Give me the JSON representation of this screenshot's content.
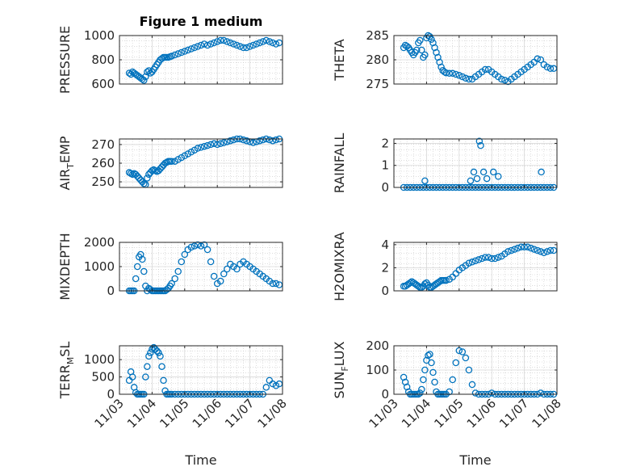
{
  "chart_data": [
    {
      "type": "scatter",
      "title": "Figure 1 medium",
      "ylabel": "PRESSURE",
      "ylim": [
        600,
        1000
      ],
      "yticks": [
        600,
        800,
        1000
      ],
      "xlim": [
        0,
        5
      ],
      "xticks": [],
      "grid": true,
      "color": "#0072BD",
      "x": [
        0.3,
        0.35,
        0.4,
        0.45,
        0.5,
        0.55,
        0.6,
        0.65,
        0.7,
        0.75,
        0.8,
        0.85,
        0.9,
        0.95,
        1.0,
        1.05,
        1.1,
        1.15,
        1.2,
        1.25,
        1.3,
        1.35,
        1.4,
        1.45,
        1.5,
        1.55,
        1.6,
        1.7,
        1.8,
        1.9,
        2.0,
        2.1,
        2.2,
        2.3,
        2.4,
        2.5,
        2.6,
        2.7,
        2.8,
        2.9,
        3.0,
        3.1,
        3.2,
        3.3,
        3.4,
        3.5,
        3.6,
        3.7,
        3.8,
        3.9,
        4.0,
        4.1,
        4.2,
        4.3,
        4.4,
        4.5,
        4.6,
        4.7,
        4.8,
        4.9
      ],
      "y": [
        690,
        680,
        700,
        690,
        680,
        670,
        660,
        650,
        640,
        630,
        660,
        700,
        710,
        690,
        700,
        720,
        740,
        760,
        780,
        800,
        810,
        820,
        820,
        820,
        820,
        825,
        830,
        840,
        850,
        860,
        870,
        880,
        890,
        900,
        910,
        920,
        930,
        920,
        930,
        940,
        950,
        960,
        960,
        950,
        940,
        930,
        920,
        910,
        900,
        900,
        910,
        920,
        930,
        940,
        950,
        960,
        950,
        940,
        930,
        940
      ]
    },
    {
      "type": "scatter",
      "ylabel": "THETA",
      "ylim": [
        275,
        285
      ],
      "yticks": [
        275,
        280,
        285
      ],
      "xlim": [
        0,
        5
      ],
      "xticks": [],
      "grid": true,
      "color": "#0072BD",
      "x": [
        0.3,
        0.35,
        0.4,
        0.45,
        0.5,
        0.55,
        0.6,
        0.65,
        0.7,
        0.75,
        0.8,
        0.85,
        0.9,
        0.95,
        1.0,
        1.05,
        1.1,
        1.15,
        1.2,
        1.25,
        1.3,
        1.35,
        1.4,
        1.45,
        1.5,
        1.55,
        1.6,
        1.7,
        1.8,
        1.9,
        2.0,
        2.1,
        2.2,
        2.3,
        2.4,
        2.5,
        2.6,
        2.7,
        2.8,
        2.9,
        3.0,
        3.1,
        3.2,
        3.3,
        3.4,
        3.5,
        3.6,
        3.7,
        3.8,
        3.9,
        4.0,
        4.1,
        4.2,
        4.3,
        4.4,
        4.5,
        4.6,
        4.7,
        4.8,
        4.9
      ],
      "y": [
        282.5,
        283,
        282.8,
        282.5,
        282,
        281.5,
        281,
        281.5,
        282,
        283.5,
        284,
        282,
        280.5,
        281,
        284.5,
        285,
        284.8,
        284.2,
        283.5,
        282.5,
        281.5,
        280.5,
        279.5,
        278.5,
        277.8,
        277.5,
        277.3,
        277.2,
        277.2,
        277,
        276.8,
        276.5,
        276.2,
        276,
        276,
        276.5,
        277,
        277.5,
        278,
        278,
        277.5,
        277,
        276.5,
        276,
        275.8,
        275.5,
        276,
        276.5,
        277,
        277.5,
        278,
        278.5,
        279,
        279.5,
        280.2,
        280,
        279,
        278.5,
        278.2,
        278.2
      ]
    },
    {
      "type": "scatter",
      "ylabel": "AIR_TEMP",
      "ylim": [
        247,
        273
      ],
      "yticks": [
        250,
        260,
        270
      ],
      "xlim": [
        0,
        5
      ],
      "xticks": [],
      "grid": true,
      "color": "#0072BD",
      "x": [
        0.3,
        0.35,
        0.4,
        0.45,
        0.5,
        0.55,
        0.6,
        0.65,
        0.7,
        0.75,
        0.8,
        0.85,
        0.9,
        0.95,
        1.0,
        1.05,
        1.1,
        1.15,
        1.2,
        1.25,
        1.3,
        1.35,
        1.4,
        1.45,
        1.5,
        1.55,
        1.6,
        1.7,
        1.8,
        1.9,
        2.0,
        2.1,
        2.2,
        2.3,
        2.4,
        2.5,
        2.6,
        2.7,
        2.8,
        2.9,
        3.0,
        3.1,
        3.2,
        3.3,
        3.4,
        3.5,
        3.6,
        3.7,
        3.8,
        3.9,
        4.0,
        4.1,
        4.2,
        4.3,
        4.4,
        4.5,
        4.6,
        4.7,
        4.8,
        4.9
      ],
      "y": [
        255,
        254.5,
        254,
        254.5,
        254,
        253,
        252,
        251,
        250,
        249,
        248.5,
        252,
        254,
        255,
        256,
        256.5,
        256,
        255.5,
        256,
        257,
        258,
        259,
        260,
        260.5,
        261,
        261,
        261,
        261,
        262,
        263,
        264,
        265,
        266,
        267,
        268,
        268.5,
        269,
        269.5,
        270,
        270.5,
        270,
        270.5,
        271,
        271.5,
        272,
        272.5,
        273,
        273,
        272.5,
        272,
        271.5,
        271,
        271.5,
        272,
        272.5,
        273,
        272.5,
        272,
        272.5,
        273
      ]
    },
    {
      "type": "scatter",
      "ylabel": "RAINFALL",
      "ylim": [
        0,
        2.2
      ],
      "yticks": [
        0,
        1,
        2
      ],
      "xlim": [
        0,
        5
      ],
      "xticks": [],
      "grid": true,
      "color": "#0072BD",
      "x": [
        0.3,
        0.4,
        0.5,
        0.6,
        0.7,
        0.8,
        0.9,
        1.0,
        1.1,
        1.2,
        1.3,
        1.4,
        1.5,
        1.6,
        1.7,
        1.8,
        1.9,
        2.0,
        2.1,
        2.2,
        2.3,
        2.4,
        2.5,
        2.6,
        2.7,
        2.8,
        2.9,
        3.0,
        3.1,
        3.2,
        3.3,
        3.4,
        3.5,
        3.6,
        3.7,
        3.8,
        3.9,
        4.0,
        4.1,
        4.2,
        4.3,
        4.4,
        4.5,
        4.6,
        4.7,
        4.8,
        4.9,
        0.95,
        2.35,
        2.45,
        2.55,
        2.75,
        2.85,
        2.62,
        2.66,
        3.05,
        3.2,
        4.52
      ],
      "y": [
        0,
        0,
        0,
        0,
        0,
        0,
        0,
        0,
        0,
        0,
        0,
        0,
        0,
        0,
        0,
        0,
        0,
        0,
        0,
        0,
        0,
        0,
        0,
        0,
        0,
        0,
        0,
        0,
        0,
        0,
        0,
        0,
        0,
        0,
        0,
        0,
        0,
        0,
        0,
        0,
        0,
        0,
        0,
        0,
        0,
        0,
        0,
        0.3,
        0.3,
        0.7,
        0.4,
        0.7,
        0.4,
        2.1,
        1.9,
        0.7,
        0.5,
        0.7
      ]
    },
    {
      "type": "scatter",
      "ylabel": "MIXDEPTH",
      "ylim": [
        0,
        2000
      ],
      "yticks": [
        0,
        1000,
        2000
      ],
      "xlim": [
        0,
        5
      ],
      "xticks": [],
      "grid": true,
      "color": "#0072BD",
      "x": [
        0.3,
        0.35,
        0.4,
        0.45,
        0.5,
        0.55,
        0.6,
        0.65,
        0.7,
        0.75,
        0.8,
        0.85,
        0.9,
        0.95,
        1.0,
        1.05,
        1.1,
        1.15,
        1.2,
        1.25,
        1.3,
        1.35,
        1.4,
        1.45,
        1.5,
        1.55,
        1.6,
        1.7,
        1.8,
        1.9,
        2.0,
        2.1,
        2.2,
        2.3,
        2.4,
        2.5,
        2.6,
        2.7,
        2.8,
        2.9,
        3.0,
        3.1,
        3.2,
        3.3,
        3.4,
        3.5,
        3.6,
        3.7,
        3.8,
        3.9,
        4.0,
        4.1,
        4.2,
        4.3,
        4.4,
        4.5,
        4.6,
        4.7,
        4.8,
        4.9
      ],
      "y": [
        0,
        0,
        0,
        0,
        500,
        1000,
        1400,
        1500,
        1300,
        800,
        200,
        0,
        100,
        50,
        0,
        0,
        0,
        0,
        0,
        0,
        0,
        0,
        0,
        50,
        100,
        200,
        300,
        500,
        800,
        1200,
        1500,
        1700,
        1800,
        1850,
        1900,
        1850,
        1900,
        1700,
        1200,
        600,
        300,
        400,
        700,
        900,
        1100,
        1000,
        900,
        1100,
        1200,
        1100,
        1000,
        900,
        800,
        700,
        600,
        500,
        400,
        300,
        300,
        250
      ]
    },
    {
      "type": "scatter",
      "ylabel": "H2OMIXRA",
      "ylim": [
        0,
        4.2
      ],
      "yticks": [
        0,
        2,
        4
      ],
      "xlim": [
        0,
        5
      ],
      "xticks": [],
      "grid": true,
      "color": "#0072BD",
      "x": [
        0.3,
        0.35,
        0.4,
        0.45,
        0.5,
        0.55,
        0.6,
        0.65,
        0.7,
        0.75,
        0.8,
        0.85,
        0.9,
        0.95,
        1.0,
        1.05,
        1.1,
        1.15,
        1.2,
        1.25,
        1.3,
        1.35,
        1.4,
        1.45,
        1.5,
        1.55,
        1.6,
        1.7,
        1.8,
        1.9,
        2.0,
        2.1,
        2.2,
        2.3,
        2.4,
        2.5,
        2.6,
        2.7,
        2.8,
        2.9,
        3.0,
        3.1,
        3.2,
        3.3,
        3.4,
        3.5,
        3.6,
        3.7,
        3.8,
        3.9,
        4.0,
        4.1,
        4.2,
        4.3,
        4.4,
        4.5,
        4.6,
        4.7,
        4.8,
        4.9
      ],
      "y": [
        0.4,
        0.4,
        0.5,
        0.6,
        0.7,
        0.8,
        0.7,
        0.6,
        0.5,
        0.4,
        0.3,
        0.3,
        0.4,
        0.6,
        0.7,
        0.5,
        0.3,
        0.3,
        0.4,
        0.5,
        0.6,
        0.7,
        0.8,
        0.9,
        0.9,
        0.9,
        0.9,
        1.0,
        1.2,
        1.5,
        1.8,
        2.0,
        2.2,
        2.4,
        2.5,
        2.6,
        2.7,
        2.8,
        2.9,
        2.9,
        2.8,
        2.8,
        2.9,
        3.0,
        3.2,
        3.4,
        3.5,
        3.6,
        3.7,
        3.8,
        3.8,
        3.8,
        3.7,
        3.6,
        3.5,
        3.4,
        3.3,
        3.4,
        3.5,
        3.5
      ]
    },
    {
      "type": "scatter",
      "ylabel": "TERR_MSL",
      "ylim": [
        0,
        1400
      ],
      "yticks": [
        0,
        500,
        1000
      ],
      "xlim": [
        0,
        5
      ],
      "xticks": [
        "11/03",
        "11/04",
        "11/05",
        "11/06",
        "11/07",
        "11/08"
      ],
      "xlabel": "Time",
      "grid": true,
      "color": "#0072BD",
      "x": [
        0.3,
        0.35,
        0.4,
        0.45,
        0.5,
        0.55,
        0.6,
        0.65,
        0.7,
        0.75,
        0.8,
        0.85,
        0.9,
        0.95,
        1.0,
        1.05,
        1.1,
        1.15,
        1.2,
        1.25,
        1.3,
        1.35,
        1.4,
        1.45,
        1.5,
        1.55,
        1.6,
        1.7,
        1.8,
        1.9,
        2.0,
        2.1,
        2.2,
        2.3,
        2.4,
        2.5,
        2.6,
        2.7,
        2.8,
        2.9,
        3.0,
        3.1,
        3.2,
        3.3,
        3.4,
        3.5,
        3.6,
        3.7,
        3.8,
        3.9,
        4.0,
        4.1,
        4.2,
        4.3,
        4.4,
        4.5,
        4.6,
        4.7,
        4.8,
        4.9
      ],
      "y": [
        400,
        650,
        500,
        200,
        50,
        0,
        0,
        0,
        0,
        0,
        500,
        800,
        1100,
        1200,
        1300,
        1350,
        1300,
        1250,
        1200,
        1100,
        800,
        400,
        100,
        0,
        0,
        0,
        0,
        0,
        0,
        0,
        0,
        0,
        0,
        0,
        0,
        0,
        0,
        0,
        0,
        0,
        0,
        0,
        0,
        0,
        0,
        0,
        0,
        0,
        0,
        0,
        0,
        0,
        0,
        0,
        0,
        200,
        400,
        300,
        250,
        300
      ]
    },
    {
      "type": "scatter",
      "ylabel": "SUN_FLUX",
      "ylim": [
        0,
        200
      ],
      "yticks": [
        0,
        100,
        200
      ],
      "xlim": [
        0,
        5
      ],
      "xticks": [
        "11/03",
        "11/04",
        "11/05",
        "11/06",
        "11/07",
        "11/08"
      ],
      "xlabel": "Time",
      "grid": true,
      "color": "#0072BD",
      "x": [
        0.3,
        0.35,
        0.4,
        0.45,
        0.5,
        0.55,
        0.6,
        0.65,
        0.7,
        0.75,
        0.8,
        0.85,
        0.9,
        0.95,
        1.0,
        1.05,
        1.1,
        1.15,
        1.2,
        1.25,
        1.3,
        1.35,
        1.4,
        1.45,
        1.5,
        1.55,
        1.6,
        1.7,
        1.8,
        1.9,
        2.0,
        2.1,
        2.2,
        2.3,
        2.4,
        2.5,
        2.6,
        2.7,
        2.8,
        2.9,
        3.0,
        3.1,
        3.2,
        3.3,
        3.4,
        3.5,
        3.6,
        3.7,
        3.8,
        3.9,
        4.0,
        4.1,
        4.2,
        4.3,
        4.4,
        4.5,
        4.6,
        4.7,
        4.8,
        4.9
      ],
      "y": [
        70,
        50,
        30,
        10,
        0,
        0,
        0,
        0,
        0,
        0,
        5,
        20,
        60,
        100,
        140,
        160,
        165,
        130,
        90,
        50,
        10,
        0,
        0,
        0,
        0,
        0,
        0,
        10,
        60,
        130,
        180,
        175,
        150,
        100,
        40,
        5,
        0,
        0,
        0,
        0,
        5,
        0,
        0,
        0,
        0,
        0,
        0,
        0,
        0,
        0,
        0,
        0,
        0,
        0,
        0,
        5,
        0,
        0,
        0,
        0
      ]
    }
  ]
}
